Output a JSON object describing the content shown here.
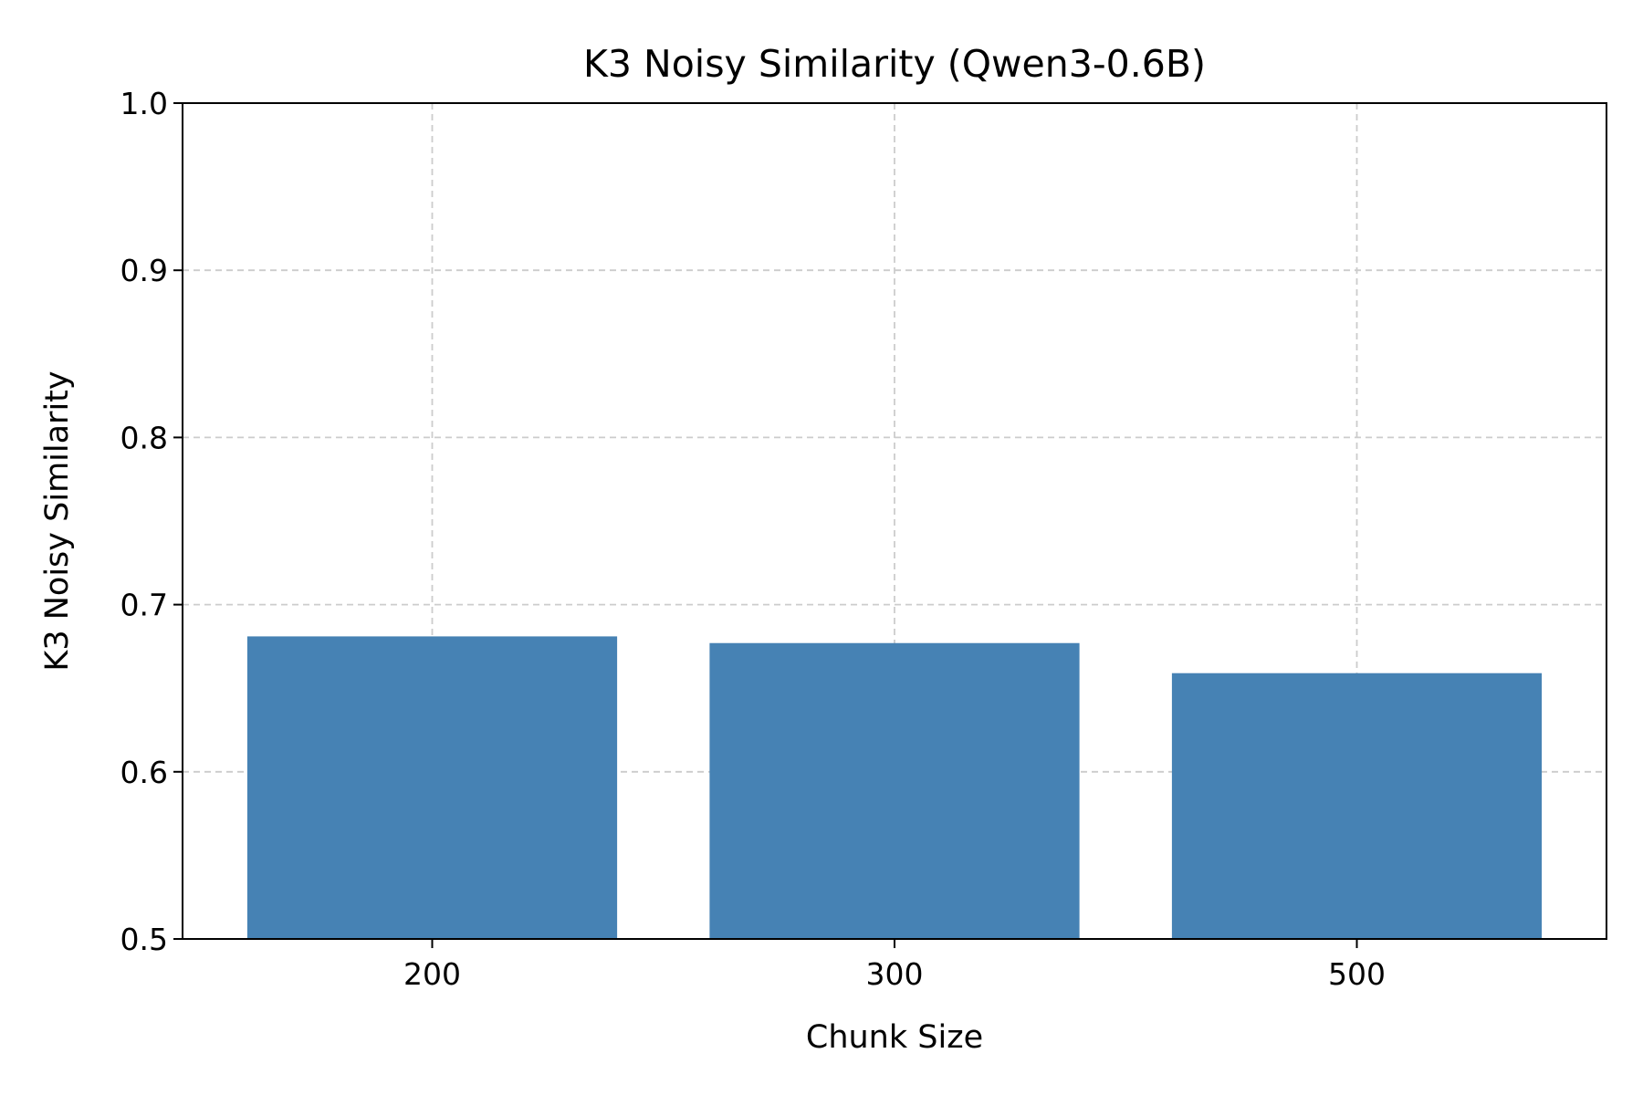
{
  "chart_data": {
    "type": "bar",
    "title": "K3 Noisy Similarity (Qwen3-0.6B)",
    "xlabel": "Chunk Size",
    "ylabel": "K3 Noisy Similarity",
    "categories": [
      "200",
      "300",
      "500"
    ],
    "values": [
      0.681,
      0.677,
      0.659
    ],
    "ylim": [
      0.5,
      1.0
    ],
    "yticks": [
      "0.5",
      "0.6",
      "0.7",
      "0.8",
      "0.9",
      "1.0"
    ],
    "grid": true,
    "legend": "none",
    "bar_color": "#4682b4",
    "grid_color": "#cccccc"
  }
}
